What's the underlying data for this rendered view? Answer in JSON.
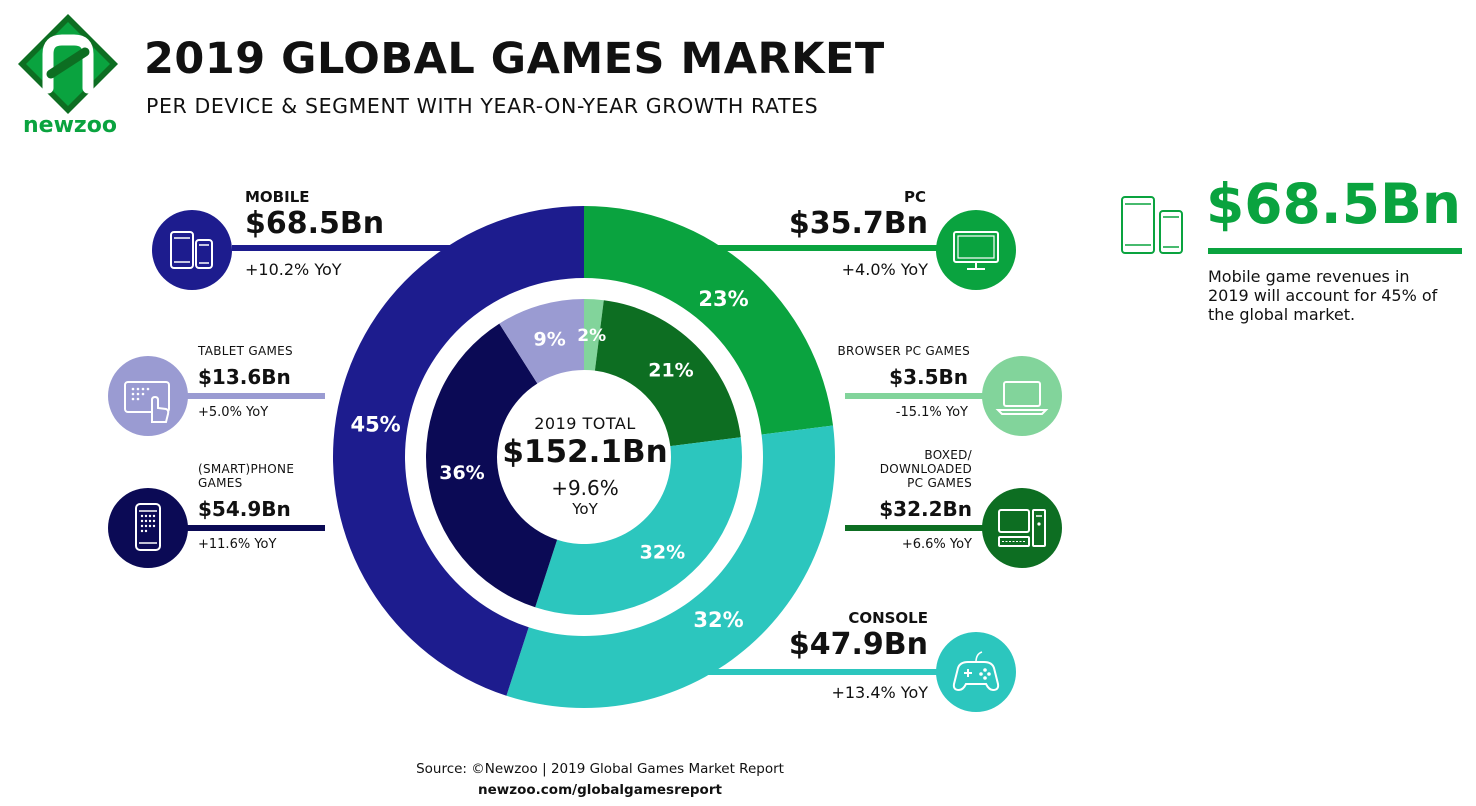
{
  "brand": {
    "name": "newzoo"
  },
  "header": {
    "title": "2019 GLOBAL GAMES MARKET",
    "subtitle": "PER DEVICE & SEGMENT WITH YEAR-ON-YEAR GROWTH RATES"
  },
  "colors": {
    "mobile": "#1d1c8e",
    "pc": "#0aa33f",
    "console": "#2cc6be",
    "tablet": "#9a9bd2",
    "smartphone": "#0b0a55",
    "browser_pc": "#82d49b",
    "boxed_pc": "#0d6e22"
  },
  "icons": {
    "mobile": "tablet-and-phone-icon",
    "tablet": "tablet-touch-icon",
    "smartphone": "smartphone-icon",
    "pc": "monitor-icon",
    "browser_pc": "laptop-icon",
    "boxed_pc": "desktop-computer-icon",
    "console": "gamepad-icon",
    "kpi": "tablet-and-phone-outline-icon"
  },
  "segments": {
    "mobile": {
      "label": "MOBILE",
      "value": "$68.5Bn",
      "yoy": "+10.2% YoY"
    },
    "tablet": {
      "label": "TABLET GAMES",
      "value": "$13.6Bn",
      "yoy": "+5.0% YoY"
    },
    "smartphone": {
      "label": "(SMART)PHONE GAMES",
      "value": "$54.9Bn",
      "yoy": "+11.6% YoY"
    },
    "pc": {
      "label": "PC",
      "value": "$35.7Bn",
      "yoy": "+4.0% YoY"
    },
    "browser_pc": {
      "label": "BROWSER PC GAMES",
      "value": "$3.5Bn",
      "yoy": "-15.1% YoY"
    },
    "boxed_pc": {
      "label": "BOXED/ DOWNLOADED PC GAMES",
      "value": "$32.2Bn",
      "yoy": "+6.6% YoY"
    },
    "console": {
      "label": "CONSOLE",
      "value": "$47.9Bn",
      "yoy": "+13.4% YoY"
    }
  },
  "center": {
    "label": "2019 TOTAL",
    "value": "$152.1Bn",
    "growth": "+9.6%",
    "growth_unit": "YoY"
  },
  "kpi": {
    "value": "$68.5Bn",
    "text": "Mobile game revenues in 2019 will account for 45% of the global market."
  },
  "footer": {
    "source": "Source: ©Newzoo | 2019 Global Games Market Report",
    "url": "newzoo.com/globalgamesreport"
  },
  "chart_data": {
    "type": "pie",
    "title": "2019 GLOBAL GAMES MARKET",
    "unit": "%",
    "series": [
      {
        "ring": "outer",
        "categories": [
          "PC",
          "CONSOLE",
          "MOBILE"
        ],
        "values": [
          23,
          32,
          45
        ],
        "labels": [
          "23%",
          "32%",
          "45%"
        ],
        "colors": [
          "#0aa33f",
          "#2cc6be",
          "#1d1c8e"
        ]
      },
      {
        "ring": "inner",
        "categories": [
          "BROWSER PC GAMES",
          "BOXED/ DOWNLOADED PC GAMES",
          "CONSOLE",
          "(SMART)PHONE GAMES",
          "TABLET GAMES"
        ],
        "values": [
          2,
          21,
          32,
          36,
          9
        ],
        "labels": [
          "2%",
          "21%",
          "32%",
          "36%",
          "9%"
        ],
        "colors": [
          "#82d49b",
          "#0d6e22",
          "#2cc6be",
          "#0b0a55",
          "#9a9bd2"
        ]
      }
    ]
  }
}
